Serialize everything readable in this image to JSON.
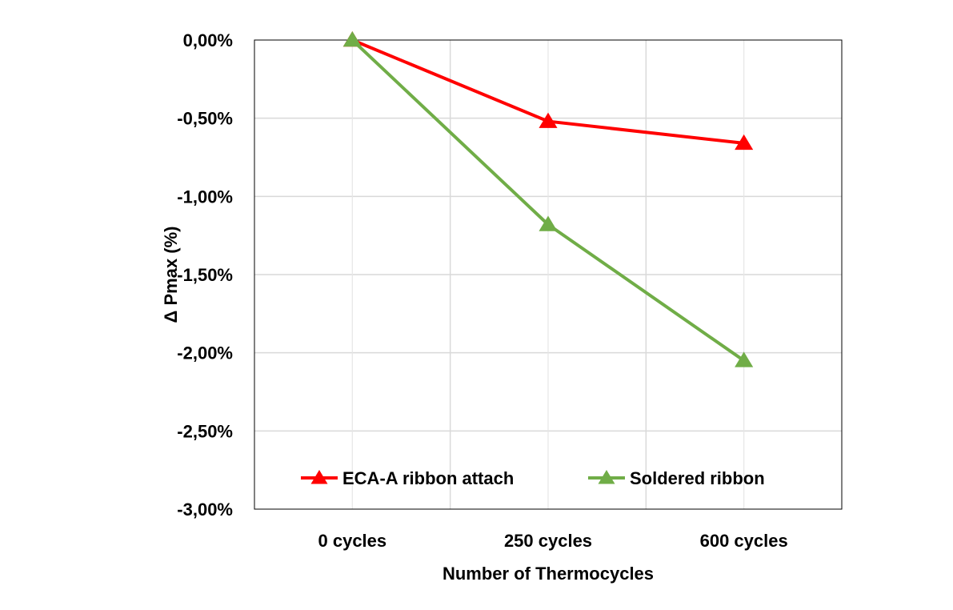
{
  "chart_data": {
    "type": "line",
    "title": "",
    "xlabel": "Number of Thermocycles",
    "ylabel": "Δ Pmax (%)",
    "categories": [
      "0 cycles",
      "250 cycles",
      "600 cycles"
    ],
    "ylim": [
      -3.0,
      0.0
    ],
    "yticks": [
      "0,00%",
      "-0,50%",
      "-1,00%",
      "-1,50%",
      "-2,00%",
      "-2,50%",
      "-3,00%"
    ],
    "ytick_values": [
      0,
      -0.5,
      -1.0,
      -1.5,
      -2.0,
      -2.5,
      -3.0
    ],
    "grid": true,
    "legend_position": "bottom-inside",
    "series": [
      {
        "name": "ECA-A ribbon attach",
        "color": "#ff0000",
        "marker": "triangle",
        "values": [
          0.0,
          -0.52,
          -0.66
        ]
      },
      {
        "name": "Soldered ribbon",
        "color": "#70ad47",
        "marker": "triangle",
        "values": [
          0.0,
          -1.18,
          -2.05
        ]
      }
    ]
  }
}
